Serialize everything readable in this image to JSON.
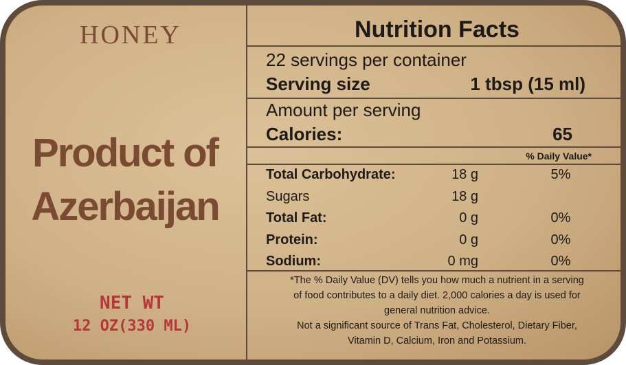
{
  "left": {
    "brand": "HONEY",
    "origin": [
      "Product of",
      "Azerbaijan"
    ],
    "net_weight_label": "NET WT",
    "net_weight": "12 OZ(330 ML)"
  },
  "nutrition": {
    "title": "Nutrition Facts",
    "servings": "22 servings per container",
    "serving_size_label": "Serving size",
    "serving_size": "1 tbsp (15 ml)",
    "amount_per_serving": "Amount per serving",
    "calories_label": "Calories:",
    "calories": "65",
    "daily_value_header": "% Daily Value*",
    "rows": [
      [
        "Total Carbohydrate:",
        "18 g",
        "5%"
      ],
      [
        "Sugars",
        "18 g",
        ""
      ],
      [
        "Total Fat:",
        "0 g",
        "0%"
      ],
      [
        "Protein:",
        "0 g",
        "0%"
      ],
      [
        "Sodium:",
        "0 mg",
        "0%"
      ]
    ],
    "footnote": [
      "*The % Daily Value (DV) tells you how much a nutrient in a serving",
      "of food contributes to a daily diet. 2,000 calories a day is used for",
      "general nutrition advice.",
      "Not a significant source of Trans Fat, Cholesterol, Dietary Fiber,",
      "Vitamin D, Calcium, Iron and Potassium."
    ]
  }
}
